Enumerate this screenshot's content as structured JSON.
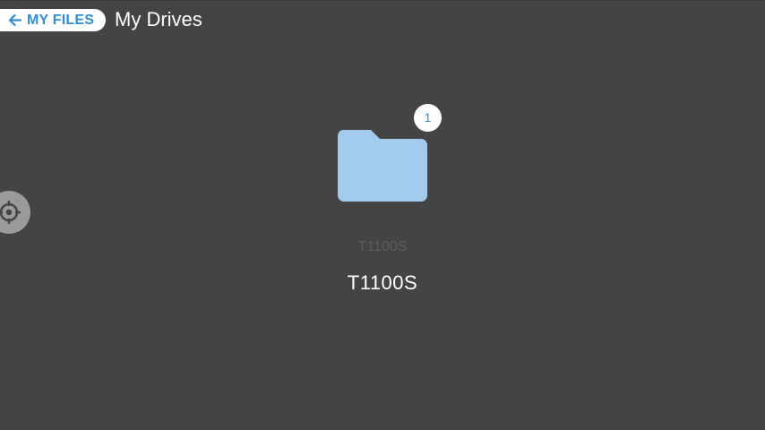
{
  "header": {
    "back_label": "MY FILES",
    "title": "My Drives"
  },
  "drive": {
    "badge_count": "1",
    "secondary_label": "T1100S",
    "name": "T1100S"
  },
  "icons": {
    "back": "arrow-left-icon",
    "folder": "folder-icon",
    "target": "crosshair-icon"
  },
  "colors": {
    "background": "#444444",
    "accent": "#2e8fd1",
    "folder": "#a3cbee"
  }
}
